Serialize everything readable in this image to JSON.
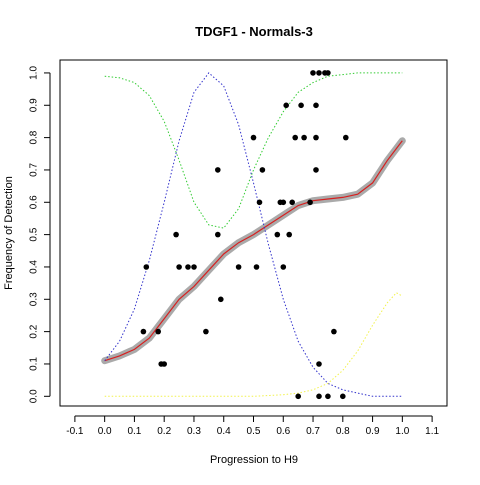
{
  "chart_data": {
    "type": "scatter",
    "title": "TDGF1 - Normals-3",
    "xlabel": "Progression to H9",
    "ylabel": "Frequency of Detection",
    "xlim": [
      -0.15,
      1.15
    ],
    "ylim": [
      -0.03,
      1.04
    ],
    "x_ticks": [
      "-0.1",
      "0.0",
      "0.1",
      "0.2",
      "0.3",
      "0.4",
      "0.5",
      "0.6",
      "0.7",
      "0.8",
      "0.9",
      "1.0",
      "1.1"
    ],
    "y_ticks": [
      "0.0",
      "0.1",
      "0.2",
      "0.3",
      "0.4",
      "0.5",
      "0.6",
      "0.7",
      "0.8",
      "0.9",
      "1.0"
    ],
    "grid": false,
    "legend": "none",
    "colors": {
      "points": "#000000",
      "smooth_band": "#aaaaaa",
      "fit_line": "#d62020",
      "green_curve": "#33cc33",
      "blue_curve": "#3333cc",
      "yellow_curve": "#f2f24a"
    },
    "points": [
      [
        0.14,
        0.4
      ],
      [
        0.13,
        0.2
      ],
      [
        0.18,
        0.2
      ],
      [
        0.19,
        0.1
      ],
      [
        0.2,
        0.1
      ],
      [
        0.24,
        0.5
      ],
      [
        0.25,
        0.4
      ],
      [
        0.28,
        0.4
      ],
      [
        0.3,
        0.4
      ],
      [
        0.34,
        0.2
      ],
      [
        0.38,
        0.7
      ],
      [
        0.38,
        0.5
      ],
      [
        0.39,
        0.3
      ],
      [
        0.45,
        0.4
      ],
      [
        0.5,
        0.8
      ],
      [
        0.51,
        0.4
      ],
      [
        0.52,
        0.6
      ],
      [
        0.53,
        0.7
      ],
      [
        0.58,
        0.5
      ],
      [
        0.59,
        0.6
      ],
      [
        0.6,
        0.4
      ],
      [
        0.6,
        0.6
      ],
      [
        0.61,
        0.9
      ],
      [
        0.62,
        0.5
      ],
      [
        0.63,
        0.6
      ],
      [
        0.64,
        0.8
      ],
      [
        0.65,
        0.0
      ],
      [
        0.66,
        0.9
      ],
      [
        0.67,
        0.8
      ],
      [
        0.69,
        0.6
      ],
      [
        0.7,
        1.0
      ],
      [
        0.71,
        0.9
      ],
      [
        0.71,
        0.8
      ],
      [
        0.71,
        0.7
      ],
      [
        0.72,
        1.0
      ],
      [
        0.72,
        0.1
      ],
      [
        0.72,
        0.0
      ],
      [
        0.74,
        1.0
      ],
      [
        0.75,
        1.0
      ],
      [
        0.75,
        0.0
      ],
      [
        0.77,
        0.2
      ],
      [
        0.8,
        0.0
      ],
      [
        0.81,
        0.8
      ]
    ],
    "fit_curve": {
      "x": [
        0.0,
        0.05,
        0.1,
        0.15,
        0.2,
        0.25,
        0.3,
        0.35,
        0.4,
        0.45,
        0.5,
        0.55,
        0.6,
        0.65,
        0.7,
        0.75,
        0.8,
        0.85,
        0.9,
        0.95,
        1.0
      ],
      "y": [
        0.11,
        0.125,
        0.145,
        0.18,
        0.24,
        0.3,
        0.34,
        0.39,
        0.44,
        0.475,
        0.5,
        0.53,
        0.56,
        0.59,
        0.605,
        0.61,
        0.615,
        0.625,
        0.66,
        0.73,
        0.79
      ]
    },
    "green_curve": {
      "x": [
        0.0,
        0.05,
        0.1,
        0.15,
        0.2,
        0.25,
        0.3,
        0.35,
        0.4,
        0.45,
        0.5,
        0.55,
        0.6,
        0.65,
        0.7,
        0.75,
        0.8,
        0.85,
        0.9,
        0.95,
        1.0
      ],
      "y": [
        0.99,
        0.985,
        0.97,
        0.93,
        0.85,
        0.73,
        0.6,
        0.53,
        0.52,
        0.58,
        0.7,
        0.8,
        0.88,
        0.94,
        0.97,
        0.99,
        0.995,
        1.0,
        1.0,
        1.0,
        1.0
      ]
    },
    "blue_curve": {
      "x": [
        0.0,
        0.05,
        0.1,
        0.15,
        0.2,
        0.25,
        0.3,
        0.35,
        0.4,
        0.45,
        0.5,
        0.55,
        0.6,
        0.65,
        0.7,
        0.75,
        0.8,
        0.85,
        0.9,
        0.95,
        1.0
      ],
      "y": [
        0.11,
        0.17,
        0.27,
        0.42,
        0.6,
        0.79,
        0.94,
        1.0,
        0.96,
        0.84,
        0.66,
        0.47,
        0.3,
        0.17,
        0.09,
        0.04,
        0.02,
        0.01,
        0.0,
        0.0,
        0.0
      ]
    },
    "yellow_curve": {
      "x": [
        0.0,
        0.1,
        0.2,
        0.3,
        0.4,
        0.5,
        0.6,
        0.65,
        0.7,
        0.75,
        0.8,
        0.85,
        0.9,
        0.95,
        0.98,
        1.0
      ],
      "y": [
        0.0,
        0.0,
        0.0,
        0.0,
        0.0,
        0.0,
        0.005,
        0.01,
        0.02,
        0.04,
        0.08,
        0.14,
        0.22,
        0.29,
        0.32,
        0.31
      ]
    }
  }
}
